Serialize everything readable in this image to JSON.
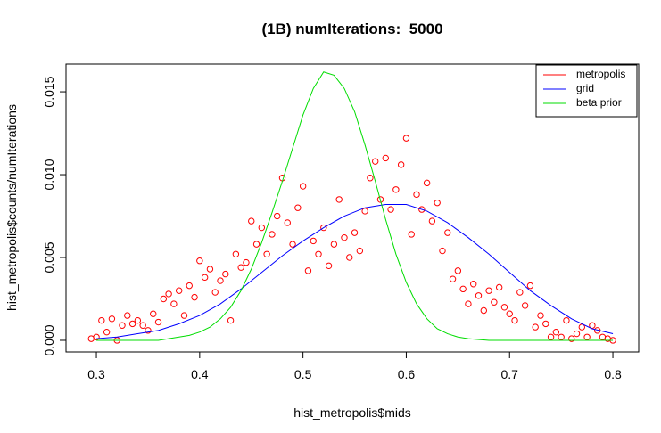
{
  "chart_data": {
    "type": "scatter",
    "title": "(1B) numIterations:  5000",
    "xlabel": "hist_metropolis$mids",
    "ylabel": "hist_metropolis$counts/numIterations",
    "xlim": [
      0.2706,
      0.825
    ],
    "ylim": [
      -0.0007,
      0.01667
    ],
    "xticks": [
      0.3,
      0.4,
      0.5,
      0.6,
      0.7,
      0.8
    ],
    "yticks": [
      {
        "value": 0,
        "label": "0.000"
      },
      {
        "value": 0.005,
        "label": "0.005"
      },
      {
        "value": 0.01,
        "label": "0.010"
      },
      {
        "value": 0.015,
        "label": "0.015"
      }
    ],
    "legend": "topright",
    "series": [
      {
        "name": "metropolis",
        "type": "scatter",
        "color": "#ff0000",
        "x": [
          0.295,
          0.3,
          0.305,
          0.31,
          0.315,
          0.32,
          0.325,
          0.33,
          0.335,
          0.34,
          0.345,
          0.35,
          0.355,
          0.36,
          0.365,
          0.37,
          0.375,
          0.38,
          0.385,
          0.39,
          0.395,
          0.4,
          0.405,
          0.41,
          0.415,
          0.42,
          0.425,
          0.43,
          0.435,
          0.44,
          0.445,
          0.45,
          0.455,
          0.46,
          0.465,
          0.47,
          0.475,
          0.48,
          0.485,
          0.49,
          0.495,
          0.5,
          0.505,
          0.51,
          0.515,
          0.52,
          0.525,
          0.53,
          0.535,
          0.54,
          0.545,
          0.55,
          0.555,
          0.56,
          0.565,
          0.57,
          0.575,
          0.58,
          0.585,
          0.59,
          0.595,
          0.6,
          0.605,
          0.61,
          0.615,
          0.62,
          0.625,
          0.63,
          0.635,
          0.64,
          0.645,
          0.65,
          0.655,
          0.66,
          0.665,
          0.67,
          0.675,
          0.68,
          0.685,
          0.69,
          0.695,
          0.7,
          0.705,
          0.71,
          0.715,
          0.72,
          0.725,
          0.73,
          0.735,
          0.74,
          0.745,
          0.75,
          0.755,
          0.76,
          0.765,
          0.77,
          0.775,
          0.78,
          0.785,
          0.79,
          0.795,
          0.8
        ],
        "values": [
          0.0001,
          0.0002,
          0.0012,
          0.0005,
          0.0013,
          0,
          0.0009,
          0.0015,
          0.001,
          0.0012,
          0.0009,
          0.0006,
          0.0016,
          0.0011,
          0.0025,
          0.0028,
          0.0022,
          0.003,
          0.0015,
          0.0033,
          0.0026,
          0.0048,
          0.0038,
          0.0043,
          0.0029,
          0.0036,
          0.004,
          0.0012,
          0.0052,
          0.0044,
          0.0047,
          0.0072,
          0.0058,
          0.0068,
          0.0052,
          0.0064,
          0.0075,
          0.0098,
          0.0071,
          0.0058,
          0.008,
          0.0093,
          0.0042,
          0.006,
          0.0052,
          0.0068,
          0.0045,
          0.0058,
          0.0085,
          0.0062,
          0.005,
          0.0065,
          0.0054,
          0.0078,
          0.0098,
          0.0108,
          0.0085,
          0.011,
          0.0079,
          0.0091,
          0.0106,
          0.0122,
          0.0064,
          0.0088,
          0.0079,
          0.0095,
          0.0072,
          0.0083,
          0.0054,
          0.0065,
          0.0037,
          0.0042,
          0.0031,
          0.0022,
          0.0034,
          0.0027,
          0.0018,
          0.003,
          0.0023,
          0.0032,
          0.002,
          0.0016,
          0.0012,
          0.0029,
          0.0021,
          0.0033,
          0.0008,
          0.0015,
          0.001,
          0.0002,
          0.0005,
          0.0002,
          0.0012,
          0.0001,
          0.0004,
          0.0008,
          0.0002,
          0.0009,
          0.0006,
          0.0002,
          0.0001,
          0
        ]
      },
      {
        "name": "grid",
        "type": "line",
        "color": "#0000ff",
        "x": [
          0.3,
          0.32,
          0.34,
          0.36,
          0.38,
          0.4,
          0.42,
          0.44,
          0.46,
          0.48,
          0.5,
          0.52,
          0.54,
          0.56,
          0.58,
          0.6,
          0.62,
          0.64,
          0.66,
          0.68,
          0.7,
          0.72,
          0.74,
          0.76,
          0.78,
          0.8
        ],
        "values": [
          0.0001,
          0.0002,
          0.0004,
          0.0006,
          0.001,
          0.0015,
          0.0022,
          0.0031,
          0.0041,
          0.0051,
          0.006,
          0.0068,
          0.0075,
          0.008,
          0.0082,
          0.0082,
          0.0078,
          0.0071,
          0.0062,
          0.0052,
          0.0041,
          0.003,
          0.0021,
          0.0013,
          0.0007,
          0.0004
        ]
      },
      {
        "name": "beta prior",
        "type": "line",
        "color": "#00dd00",
        "x": [
          0.3,
          0.32,
          0.34,
          0.36,
          0.37,
          0.38,
          0.39,
          0.4,
          0.41,
          0.42,
          0.43,
          0.44,
          0.45,
          0.46,
          0.47,
          0.48,
          0.49,
          0.5,
          0.51,
          0.52,
          0.53,
          0.54,
          0.55,
          0.56,
          0.57,
          0.58,
          0.59,
          0.6,
          0.61,
          0.62,
          0.63,
          0.64,
          0.65,
          0.66,
          0.68,
          0.7,
          0.75,
          0.8
        ],
        "values": [
          0,
          0,
          0,
          0,
          0.0001,
          0.0002,
          0.0003,
          0.0005,
          0.0008,
          0.0013,
          0.002,
          0.003,
          0.0043,
          0.0059,
          0.0077,
          0.0096,
          0.0116,
          0.0136,
          0.0152,
          0.0162,
          0.016,
          0.0152,
          0.0138,
          0.0118,
          0.0096,
          0.0073,
          0.0052,
          0.0035,
          0.0022,
          0.0013,
          0.0007,
          0.0004,
          0.0002,
          0.0001,
          0,
          0,
          0,
          0
        ]
      }
    ]
  }
}
